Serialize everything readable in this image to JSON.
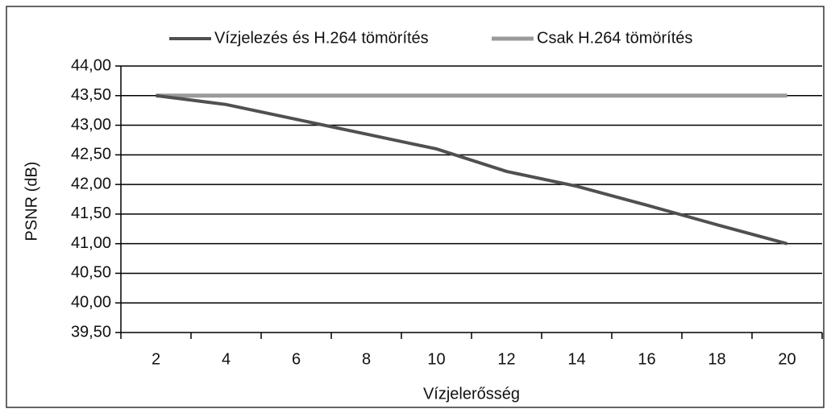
{
  "chart_data": {
    "type": "line",
    "x_label": "Vízjelerősség",
    "y_label": "PSNR (dB)",
    "categories": [
      "2",
      "4",
      "6",
      "8",
      "10",
      "12",
      "14",
      "16",
      "18",
      "20"
    ],
    "series": [
      {
        "name": "Vízjelezés és H.264 tömörítés",
        "color": "#505050",
        "values": [
          43.5,
          43.35,
          43.1,
          42.85,
          42.6,
          42.22,
          41.97,
          41.65,
          41.32,
          41.0
        ]
      },
      {
        "name": "Csak H.264 tömörítés",
        "color": "#9a9a9a",
        "values": [
          43.5,
          43.5,
          43.5,
          43.5,
          43.5,
          43.5,
          43.5,
          43.5,
          43.5,
          43.5
        ]
      }
    ],
    "ylim": [
      39.5,
      44
    ],
    "yticks": [
      {
        "value": 39.5,
        "label": "39,50"
      },
      {
        "value": 40,
        "label": "40,00"
      },
      {
        "value": 40.5,
        "label": "40,50"
      },
      {
        "value": 41,
        "label": "41,00"
      },
      {
        "value": 41.5,
        "label": "41,50"
      },
      {
        "value": 42,
        "label": "42,00"
      },
      {
        "value": 42.5,
        "label": "42,50"
      },
      {
        "value": 43,
        "label": "43,00"
      },
      {
        "value": 43.5,
        "label": "43,50"
      },
      {
        "value": 44,
        "label": "44,00"
      }
    ],
    "grid": true,
    "legend": "top"
  }
}
